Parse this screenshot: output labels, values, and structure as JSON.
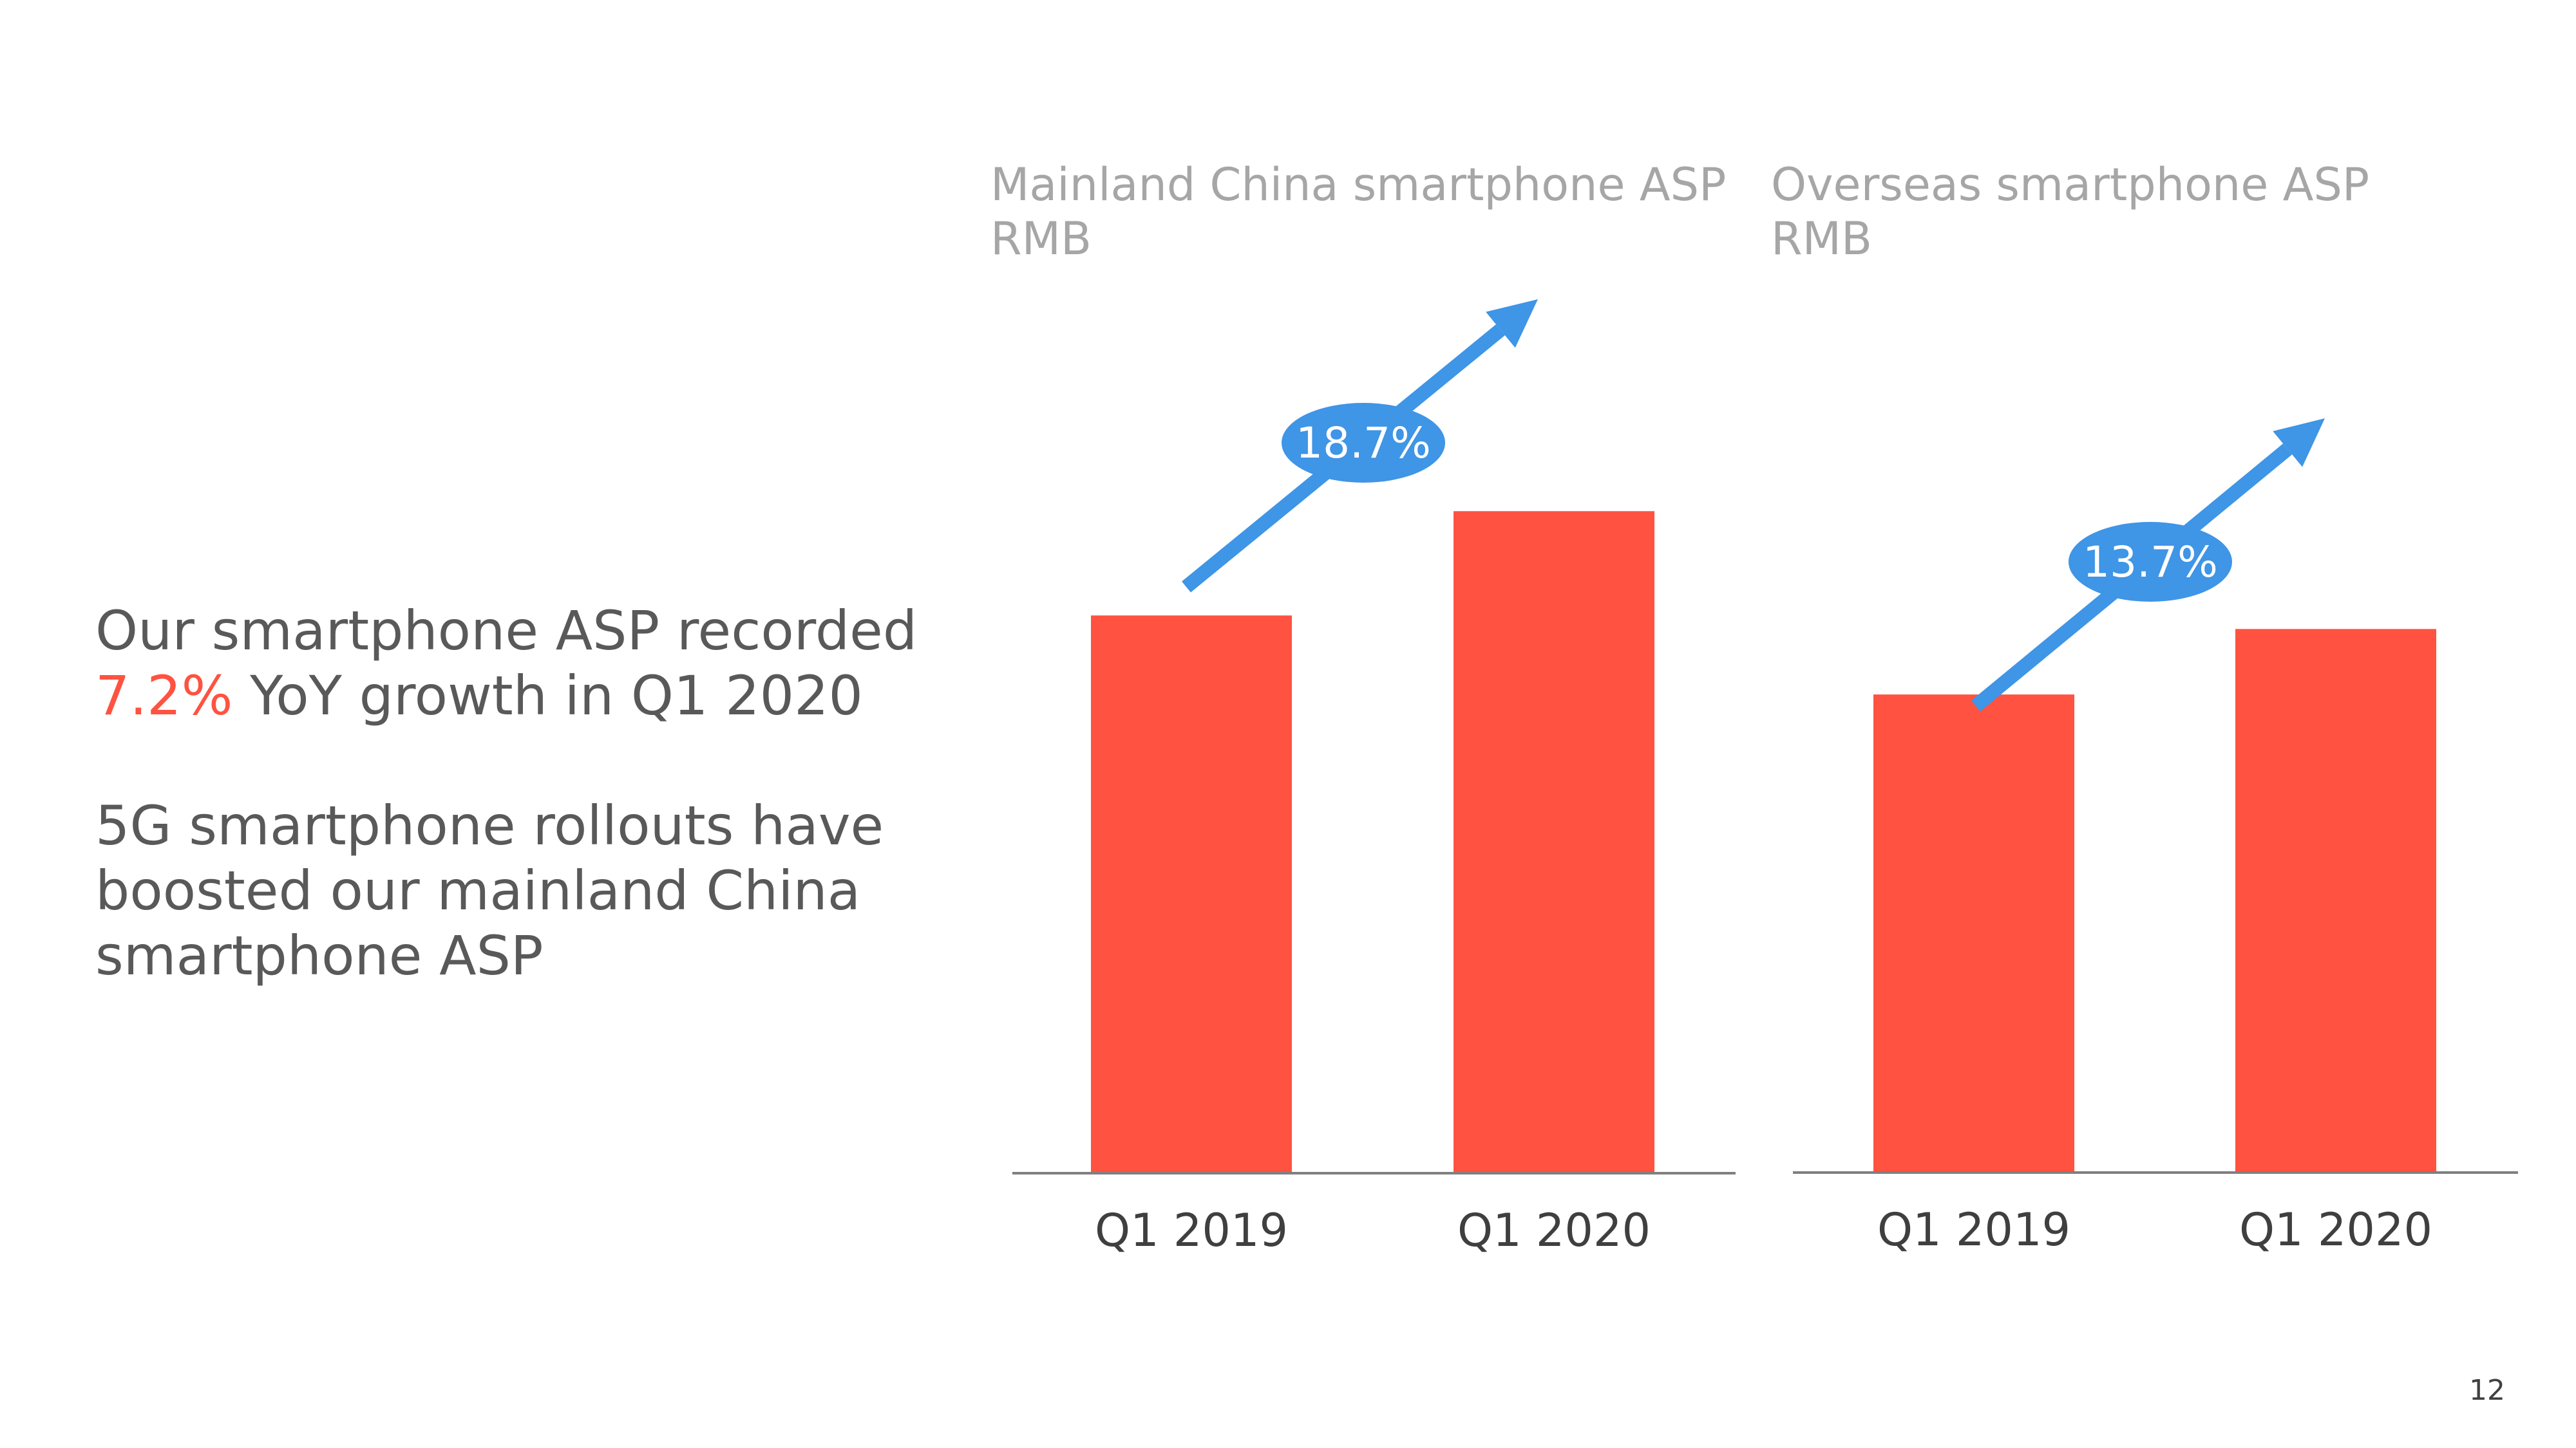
{
  "summary": {
    "line1": "Our smartphone ASP recorded",
    "highlight": "7.2%",
    "line2_rest": " YoY growth in Q1 2020",
    "para2_line1": "5G smartphone rollouts have",
    "para2_line2": "boosted our mainland China",
    "para2_line3": "smartphone ASP"
  },
  "page_number": "12",
  "colors": {
    "bar": "#FF5240",
    "arrow": "#3F95E6",
    "title": "#A6A6A6",
    "text": "#595959"
  },
  "chart_data": [
    {
      "type": "bar",
      "title": "Mainland China smartphone ASP",
      "subtitle": "RMB",
      "categories": [
        "Q1 2019",
        "Q1 2020"
      ],
      "values": [
        100,
        118.7
      ],
      "ylim": [
        0,
        150
      ],
      "growth_label": "18.7%"
    },
    {
      "type": "bar",
      "title": "Overseas smartphone ASP",
      "subtitle": "RMB",
      "categories": [
        "Q1 2019",
        "Q1 2020"
      ],
      "values": [
        100,
        113.7
      ],
      "ylim": [
        0,
        175
      ],
      "growth_label": "13.7%"
    }
  ]
}
